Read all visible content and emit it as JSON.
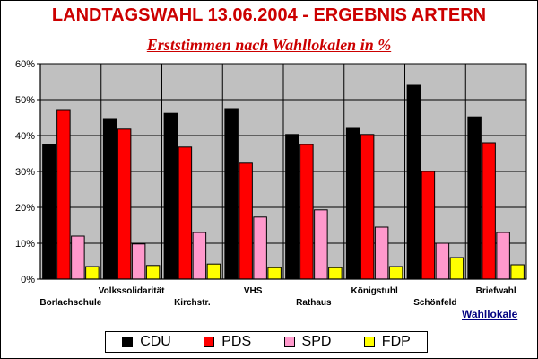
{
  "chart_data": {
    "type": "bar",
    "title": "LANDTAGSWAHL 13.06.2004 - ERGEBNIS ARTERN",
    "subtitle": "Erststimmen nach Wahllokalen in %",
    "xlabel": "Wahllokale",
    "ylabel": "",
    "ylim": [
      0,
      60
    ],
    "yticks": [
      0,
      10,
      20,
      30,
      40,
      50,
      60
    ],
    "ytick_labels": [
      "0%",
      "10%",
      "20%",
      "30%",
      "40%",
      "50%",
      "60%"
    ],
    "grid": true,
    "legend": "bottom",
    "categories": [
      "Borlachschule",
      "Volkssolidarität",
      "Kirchstr.",
      "VHS",
      "Rathaus",
      "Königstuhl",
      "Schönfeld",
      "Briefwahl"
    ],
    "series": [
      {
        "name": "CDU",
        "color": "#000000",
        "values": [
          37.5,
          44.5,
          46.2,
          47.5,
          40.3,
          42.0,
          54.0,
          45.2
        ]
      },
      {
        "name": "PDS",
        "color": "#ff0000",
        "values": [
          47.0,
          41.8,
          36.8,
          32.3,
          37.5,
          40.3,
          30.0,
          38.0
        ]
      },
      {
        "name": "SPD",
        "color": "#ff99cc",
        "values": [
          12.0,
          9.8,
          13.0,
          17.3,
          19.3,
          14.5,
          10.0,
          13.0
        ]
      },
      {
        "name": "FDP",
        "color": "#ffff00",
        "values": [
          3.5,
          3.8,
          4.2,
          3.2,
          3.2,
          3.5,
          6.0,
          4.0
        ]
      }
    ]
  }
}
